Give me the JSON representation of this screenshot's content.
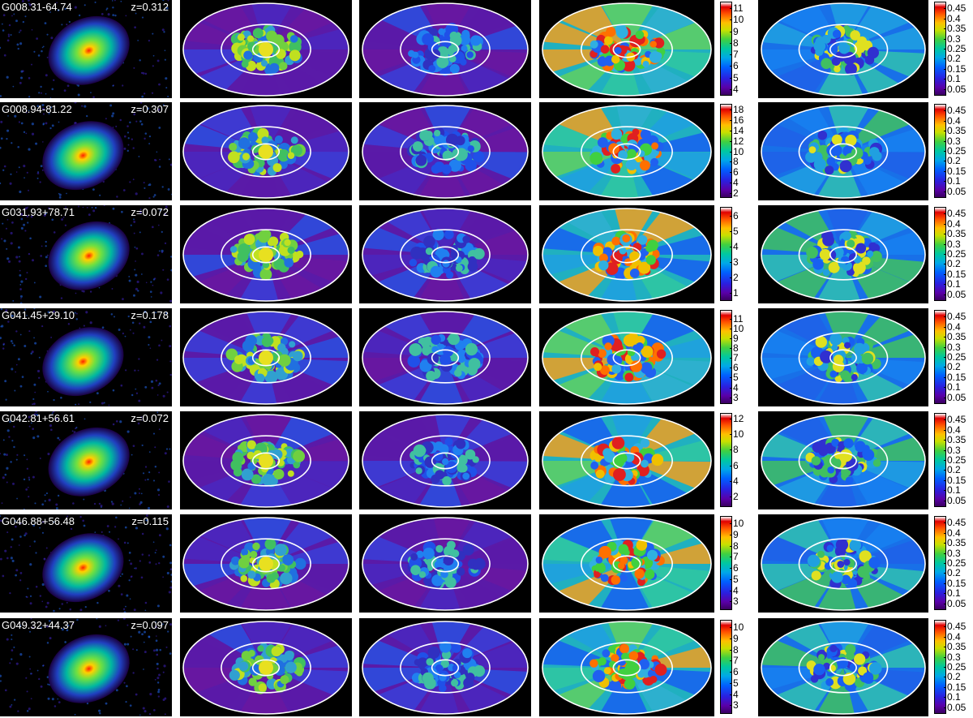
{
  "figure": {
    "rows": [
      {
        "name": "G008.31-64.74",
        "z": "z=0.312",
        "cb_left": [
          "11",
          "10",
          "9",
          "8",
          "7",
          "6",
          "5",
          "4"
        ],
        "cb_left_range": [
          3.5,
          11.5
        ],
        "cb_right": [
          "0.45",
          "0.4",
          "0.35",
          "0.3",
          "0.25",
          "0.2",
          "0.15",
          "0.1",
          "0.05"
        ]
      },
      {
        "name": "G008.94-81.22",
        "z": "z=0.307",
        "cb_left": [
          "18",
          "16",
          "14",
          "12",
          "10",
          "8",
          "6",
          "4",
          "2"
        ],
        "cb_left_range": [
          1.2,
          19
        ],
        "cb_right": [
          "0.45",
          "0.4",
          "0.35",
          "0.3",
          "0.25",
          "0.2",
          "0.15",
          "0.1",
          "0.05"
        ]
      },
      {
        "name": "G031.93+78.71",
        "z": "z=0.072",
        "cb_left": [
          "6",
          "5",
          "4",
          "3",
          "2",
          "1"
        ],
        "cb_left_range": [
          0.5,
          6.5
        ],
        "cb_right": [
          "0.45",
          "0.4",
          "0.35",
          "0.3",
          "0.25",
          "0.2",
          "0.15",
          "0.1",
          "0.05"
        ]
      },
      {
        "name": "G041.45+29.10",
        "z": "z=0.178",
        "cb_left": [
          "11",
          "10",
          "9",
          "8",
          "7",
          "6",
          "5",
          "4",
          "3"
        ],
        "cb_left_range": [
          2.4,
          11.8
        ],
        "cb_right": [
          "0.45",
          "0.4",
          "0.35",
          "0.3",
          "0.25",
          "0.2",
          "0.15",
          "0.1",
          "0.05"
        ]
      },
      {
        "name": "G042.81+56.61",
        "z": "z=0.072",
        "cb_left": [
          "12",
          "10",
          "8",
          "6",
          "4",
          "2"
        ],
        "cb_left_range": [
          0.8,
          12.6
        ],
        "cb_right": [
          "0.45",
          "0.4",
          "0.35",
          "0.3",
          "0.25",
          "0.2",
          "0.15",
          "0.1",
          "0.05"
        ]
      },
      {
        "name": "G046.88+56.48",
        "z": "z=0.115",
        "cb_left": [
          "10",
          "9",
          "8",
          "7",
          "6",
          "5",
          "4",
          "3"
        ],
        "cb_left_range": [
          2.3,
          10.6
        ],
        "cb_right": [
          "0.45",
          "0.4",
          "0.35",
          "0.3",
          "0.25",
          "0.2",
          "0.15",
          "0.1",
          "0.05"
        ]
      },
      {
        "name": "G049.32+44.37",
        "z": "z=0.097",
        "cb_left": [
          "10",
          "9",
          "8",
          "7",
          "6",
          "5",
          "4",
          "3"
        ],
        "cb_left_range": [
          2.3,
          10.6
        ],
        "cb_right": [
          "0.45",
          "0.4",
          "0.35",
          "0.3",
          "0.25",
          "0.2",
          "0.15",
          "0.1",
          "0.05"
        ]
      }
    ],
    "cb_right_range": [
      0.02,
      0.48
    ],
    "colors": {
      "background": "#000000",
      "ring": "#ffffff",
      "low": "#5a1aa8",
      "mid": "#3aa0ff",
      "green": "#46d060",
      "yellow": "#e8e020",
      "red": "#e01010"
    }
  }
}
